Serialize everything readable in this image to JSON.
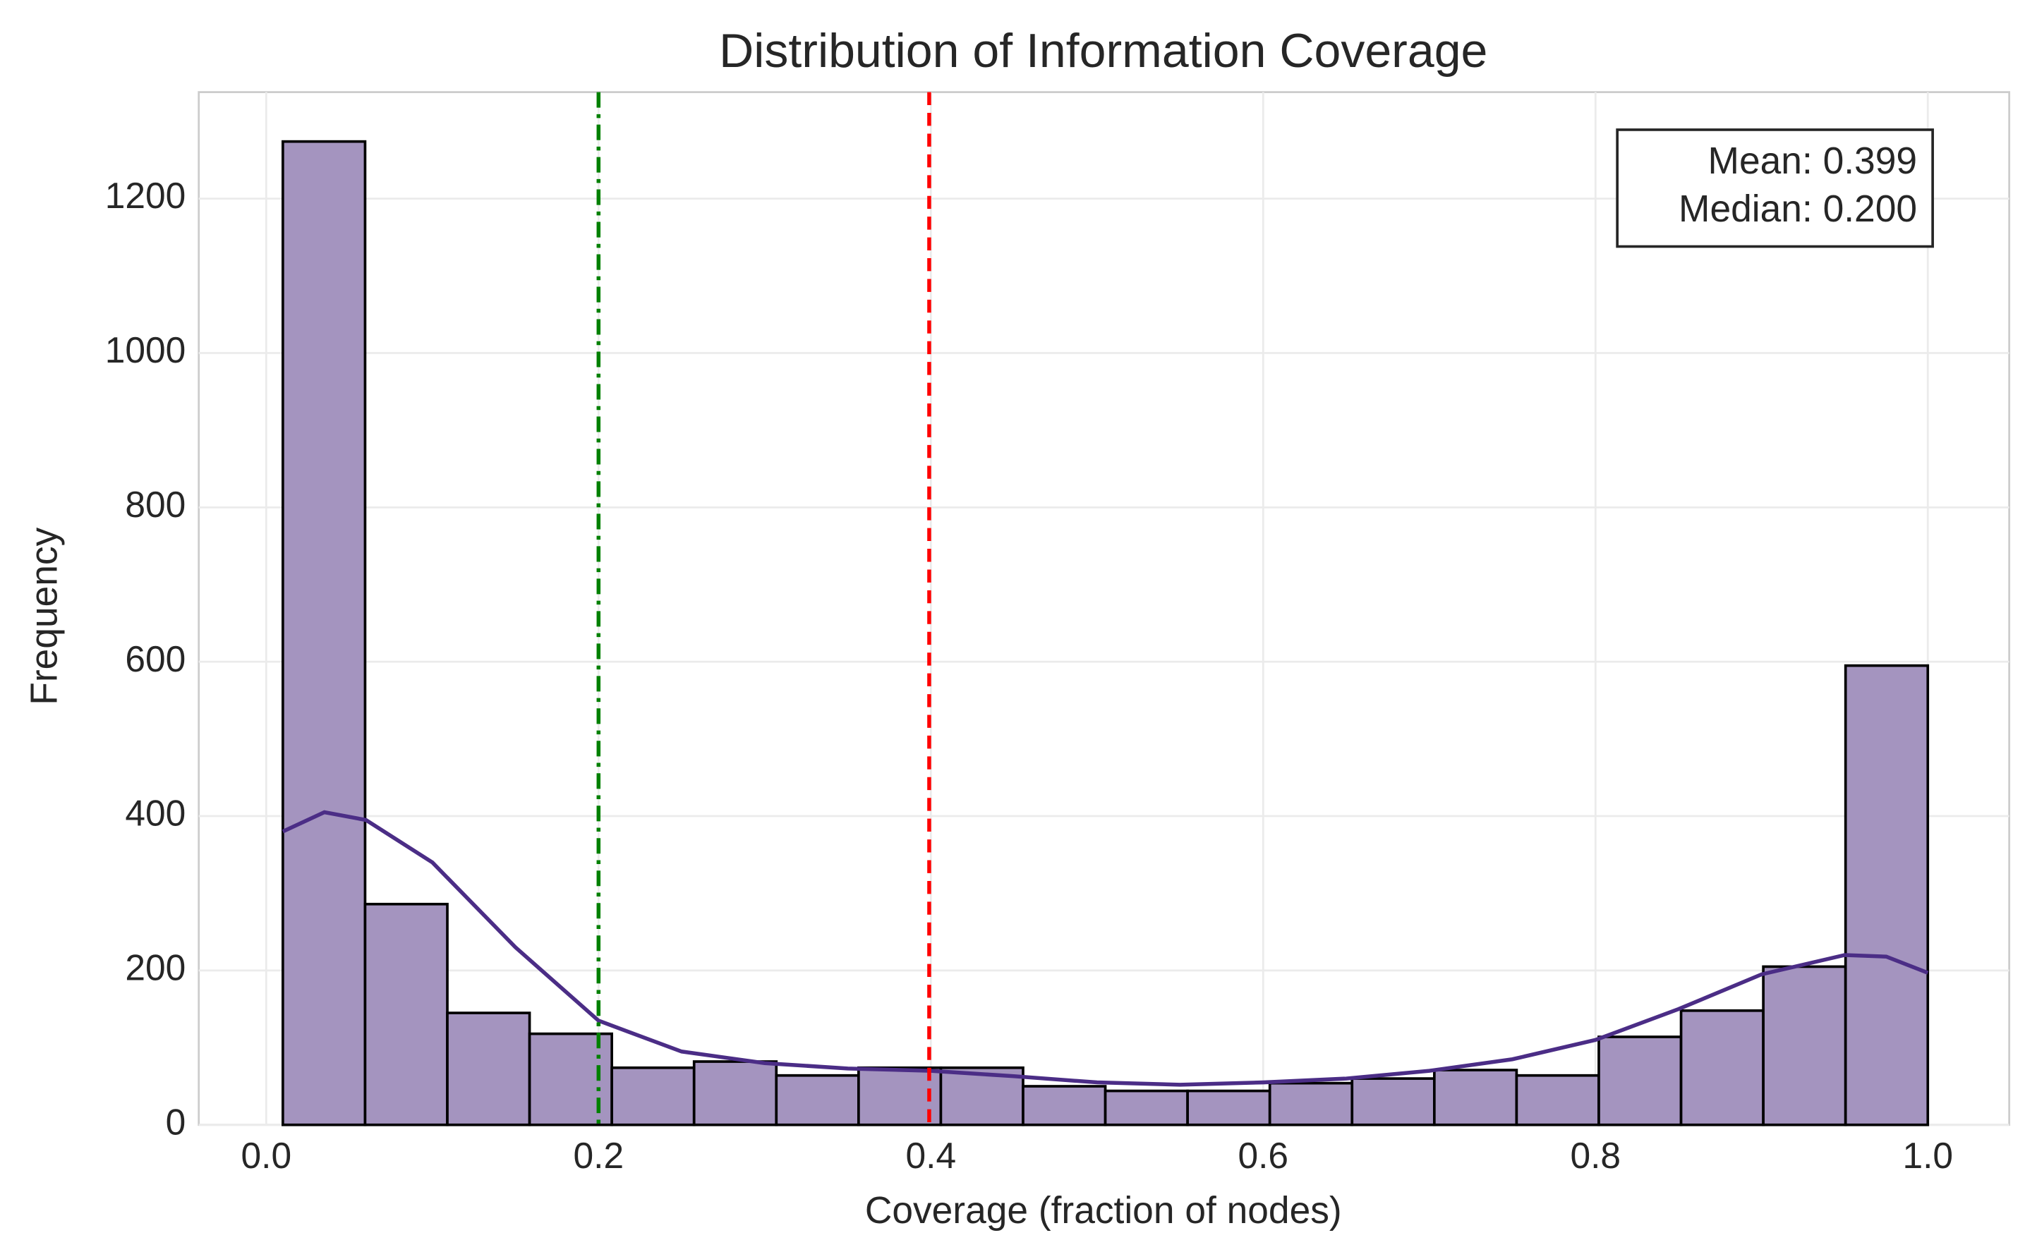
{
  "chart_data": {
    "type": "histogram",
    "title": "Distribution of Information Coverage",
    "xlabel": "Coverage (fraction of nodes)",
    "ylabel": "Frequency",
    "bins": [
      0.01,
      0.0595,
      0.109,
      0.1585,
      0.208,
      0.2575,
      0.307,
      0.3565,
      0.406,
      0.4555,
      0.505,
      0.5545,
      0.604,
      0.6535,
      0.703,
      0.7525,
      0.802,
      0.8515,
      0.901,
      0.9505,
      1.0
    ],
    "values": [
      1274,
      286,
      145,
      118,
      74,
      82,
      64,
      74,
      74,
      50,
      44,
      44,
      54,
      60,
      71,
      64,
      114,
      148,
      205,
      595
    ],
    "color": "#a494bf",
    "edgecolor": "#000000",
    "kde": {
      "color": "#4b2d86",
      "x": [
        0.01,
        0.035,
        0.06,
        0.1,
        0.15,
        0.2,
        0.25,
        0.3,
        0.35,
        0.4,
        0.45,
        0.5,
        0.55,
        0.6,
        0.65,
        0.7,
        0.75,
        0.8,
        0.85,
        0.9,
        0.95,
        0.975,
        1.0
      ],
      "values": [
        380,
        405,
        395,
        340,
        230,
        135,
        95,
        80,
        73,
        70,
        63,
        55,
        52,
        55,
        60,
        70,
        85,
        110,
        150,
        195,
        220,
        218,
        197
      ]
    },
    "lines": [
      {
        "label": "Mean: 0.399",
        "value": 0.399,
        "color": "#ff0000",
        "style": "dashed"
      },
      {
        "label": "Median: 0.200",
        "value": 0.2,
        "color": "#008000",
        "style": "dashdot"
      }
    ],
    "xlim": [
      -0.0406,
      1.049
    ],
    "ylim": [
      0,
      1338
    ],
    "xticks": [
      {
        "value": 0,
        "label": "0.0"
      },
      {
        "value": 0.2,
        "label": "0.2"
      },
      {
        "value": 0.4,
        "label": "0.4"
      },
      {
        "value": 0.6,
        "label": "0.6"
      },
      {
        "value": 0.8,
        "label": "0.8"
      },
      {
        "value": 1,
        "label": "1.0"
      }
    ],
    "yticks": [
      0,
      200,
      400,
      600,
      800,
      1000,
      1200
    ],
    "grid": true,
    "legend": "upper right"
  }
}
